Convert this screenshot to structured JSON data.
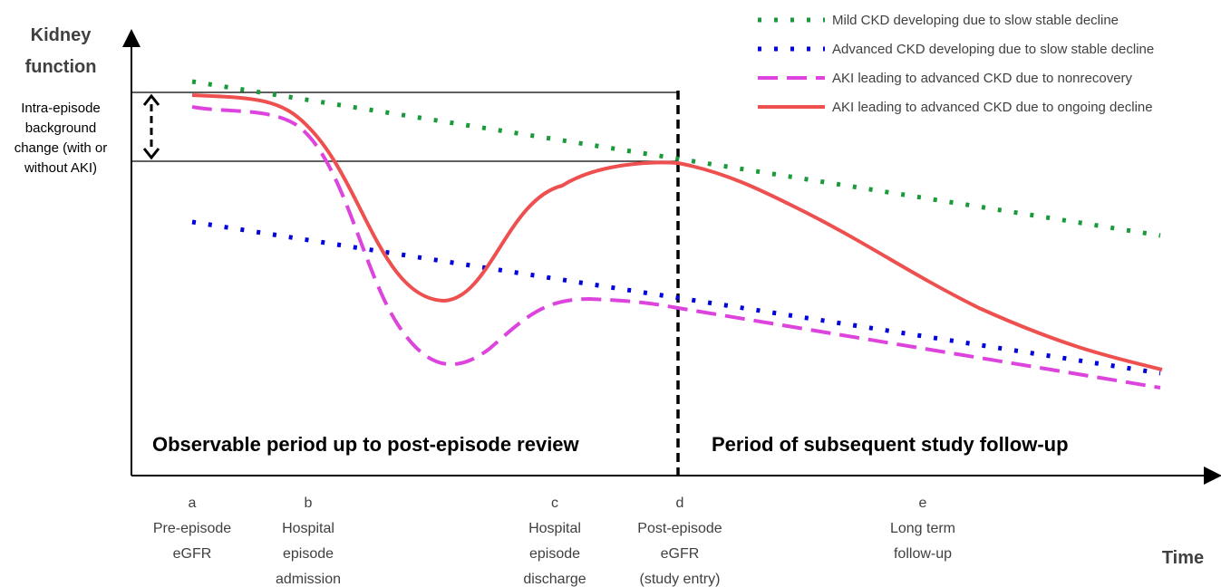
{
  "axes": {
    "y_label": [
      "Kidney",
      "function"
    ],
    "x_label": "Time"
  },
  "annotation": [
    "Intra-episode",
    "background",
    "change  (with or",
    "without AKI)"
  ],
  "legend": [
    "Mild CKD developing due to slow stable decline",
    "Advanced CKD developing due to slow stable decline",
    "AKI leading to advanced CKD due to nonrecovery",
    "AKI leading to advanced CKD due to ongoing decline"
  ],
  "periods": [
    "Observable period up to post-episode review",
    "Period of subsequent study follow-up"
  ],
  "timepoints": [
    {
      "letter": "a",
      "lines": [
        "Pre-episode",
        "eGFR"
      ]
    },
    {
      "letter": "b",
      "lines": [
        "Hospital",
        "episode",
        "admission"
      ]
    },
    {
      "letter": "c",
      "lines": [
        "Hospital",
        "episode",
        "discharge"
      ]
    },
    {
      "letter": "d",
      "lines": [
        "Post-episode",
        "eGFR",
        "(study entry)"
      ]
    },
    {
      "letter": "e",
      "lines": [
        "Long term",
        "follow-up"
      ]
    }
  ]
}
